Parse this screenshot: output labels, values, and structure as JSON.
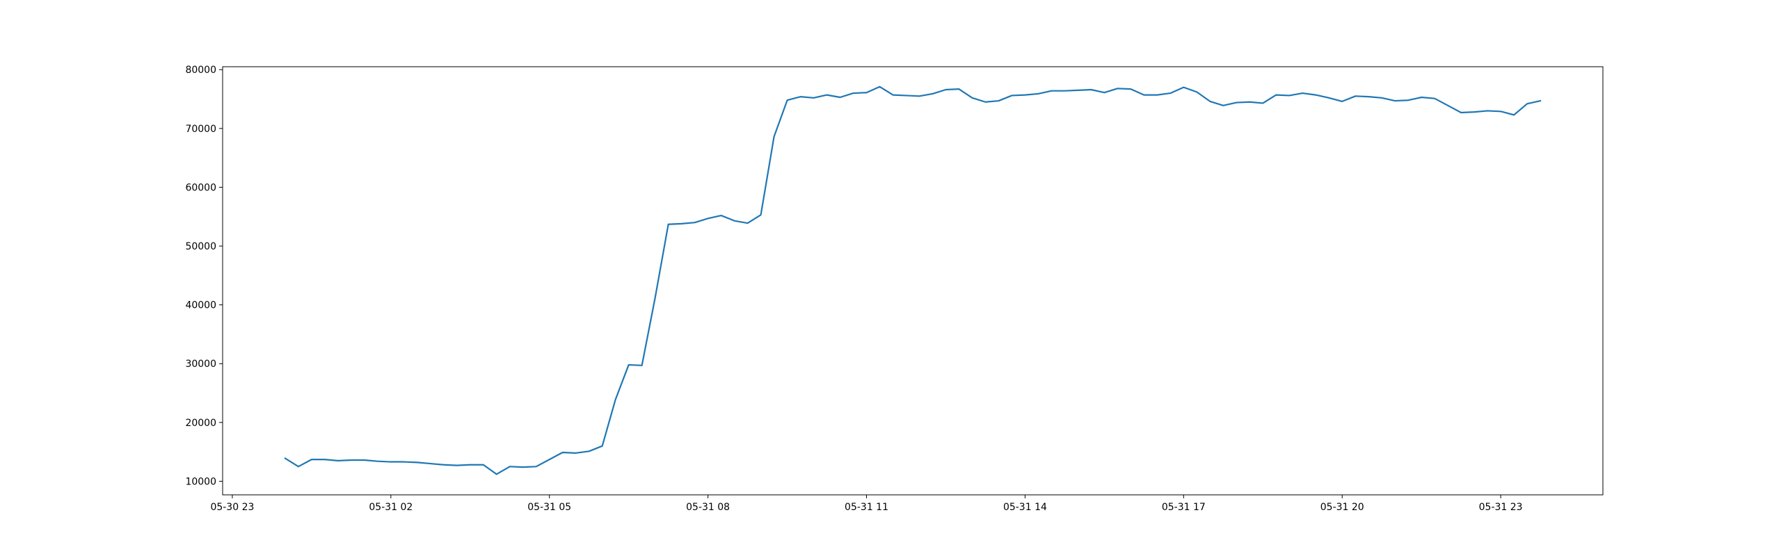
{
  "chart_data": {
    "type": "line",
    "x": [
      "05-31 00:00",
      "05-31 00:15",
      "05-31 00:30",
      "05-31 00:45",
      "05-31 01:00",
      "05-31 01:15",
      "05-31 01:30",
      "05-31 01:45",
      "05-31 02:00",
      "05-31 02:15",
      "05-31 02:30",
      "05-31 02:45",
      "05-31 03:00",
      "05-31 03:15",
      "05-31 03:30",
      "05-31 03:45",
      "05-31 04:00",
      "05-31 04:15",
      "05-31 04:30",
      "05-31 04:45",
      "05-31 05:00",
      "05-31 05:15",
      "05-31 05:30",
      "05-31 05:45",
      "05-31 06:00",
      "05-31 06:15",
      "05-31 06:30",
      "05-31 06:45",
      "05-31 07:00",
      "05-31 07:15",
      "05-31 07:30",
      "05-31 07:45",
      "05-31 08:00",
      "05-31 08:15",
      "05-31 08:30",
      "05-31 08:45",
      "05-31 09:00",
      "05-31 09:15",
      "05-31 09:30",
      "05-31 09:45",
      "05-31 10:00",
      "05-31 10:15",
      "05-31 10:30",
      "05-31 10:45",
      "05-31 11:00",
      "05-31 11:15",
      "05-31 11:30",
      "05-31 11:45",
      "05-31 12:00",
      "05-31 12:15",
      "05-31 12:30",
      "05-31 12:45",
      "05-31 13:00",
      "05-31 13:15",
      "05-31 13:30",
      "05-31 13:45",
      "05-31 14:00",
      "05-31 14:15",
      "05-31 14:30",
      "05-31 14:45",
      "05-31 15:00",
      "05-31 15:15",
      "05-31 15:30",
      "05-31 15:45",
      "05-31 16:00",
      "05-31 16:15",
      "05-31 16:30",
      "05-31 16:45",
      "05-31 17:00",
      "05-31 17:15",
      "05-31 17:30",
      "05-31 17:45",
      "05-31 18:00",
      "05-31 18:15",
      "05-31 18:30",
      "05-31 18:45",
      "05-31 19:00",
      "05-31 19:15",
      "05-31 19:30",
      "05-31 19:45",
      "05-31 20:00",
      "05-31 20:15",
      "05-31 20:30",
      "05-31 20:45",
      "05-31 21:00",
      "05-31 21:15",
      "05-31 21:30",
      "05-31 21:45",
      "05-31 22:00",
      "05-31 22:15",
      "05-31 22:30",
      "05-31 22:45",
      "05-31 23:00",
      "05-31 23:15",
      "05-31 23:30",
      "05-31 23:45"
    ],
    "series": [
      {
        "color": "#1f77b4",
        "values": [
          13900,
          12500,
          13700,
          13700,
          13500,
          13600,
          13600,
          13400,
          13300,
          13300,
          13200,
          13000,
          12800,
          12700,
          12800,
          12800,
          11200,
          12500,
          12400,
          12500,
          13700,
          14900,
          14800,
          15100,
          16000,
          23900,
          29800,
          29700,
          41200,
          53700,
          53800,
          54000,
          54700,
          55200,
          54300,
          53900,
          55300,
          68600,
          74800,
          75400,
          75200,
          75700,
          75300,
          76000,
          76100,
          77100,
          75700,
          75600,
          75500,
          75900,
          76600,
          76700,
          75200,
          74500,
          74700,
          75600,
          75700,
          75900,
          76400,
          76400,
          76500,
          76600,
          76100,
          76800,
          76700,
          75700,
          75700,
          76000,
          77000,
          76200,
          74600,
          73900,
          74400,
          74500,
          74300,
          75700,
          75600,
          76000,
          75700,
          75200,
          74600,
          75500,
          75400,
          75200,
          74700,
          74800,
          75300,
          75100,
          73900,
          72700,
          72800,
          73000,
          72900,
          72300,
          74200,
          74700
        ]
      }
    ],
    "xlim": [
      "05-30 22:49",
      "06-01 00:56"
    ],
    "xticks": [
      {
        "value": "05-30 23:00",
        "label": "05-30 23"
      },
      {
        "value": "05-31 02:00",
        "label": "05-31 02"
      },
      {
        "value": "05-31 05:00",
        "label": "05-31 05"
      },
      {
        "value": "05-31 08:00",
        "label": "05-31 08"
      },
      {
        "value": "05-31 11:00",
        "label": "05-31 11"
      },
      {
        "value": "05-31 14:00",
        "label": "05-31 14"
      },
      {
        "value": "05-31 17:00",
        "label": "05-31 17"
      },
      {
        "value": "05-31 20:00",
        "label": "05-31 20"
      },
      {
        "value": "05-31 23:00",
        "label": "05-31 23"
      }
    ],
    "ylim": [
      7690,
      80500
    ],
    "yticks": [
      10000,
      20000,
      30000,
      40000,
      50000,
      60000,
      70000,
      80000
    ]
  }
}
